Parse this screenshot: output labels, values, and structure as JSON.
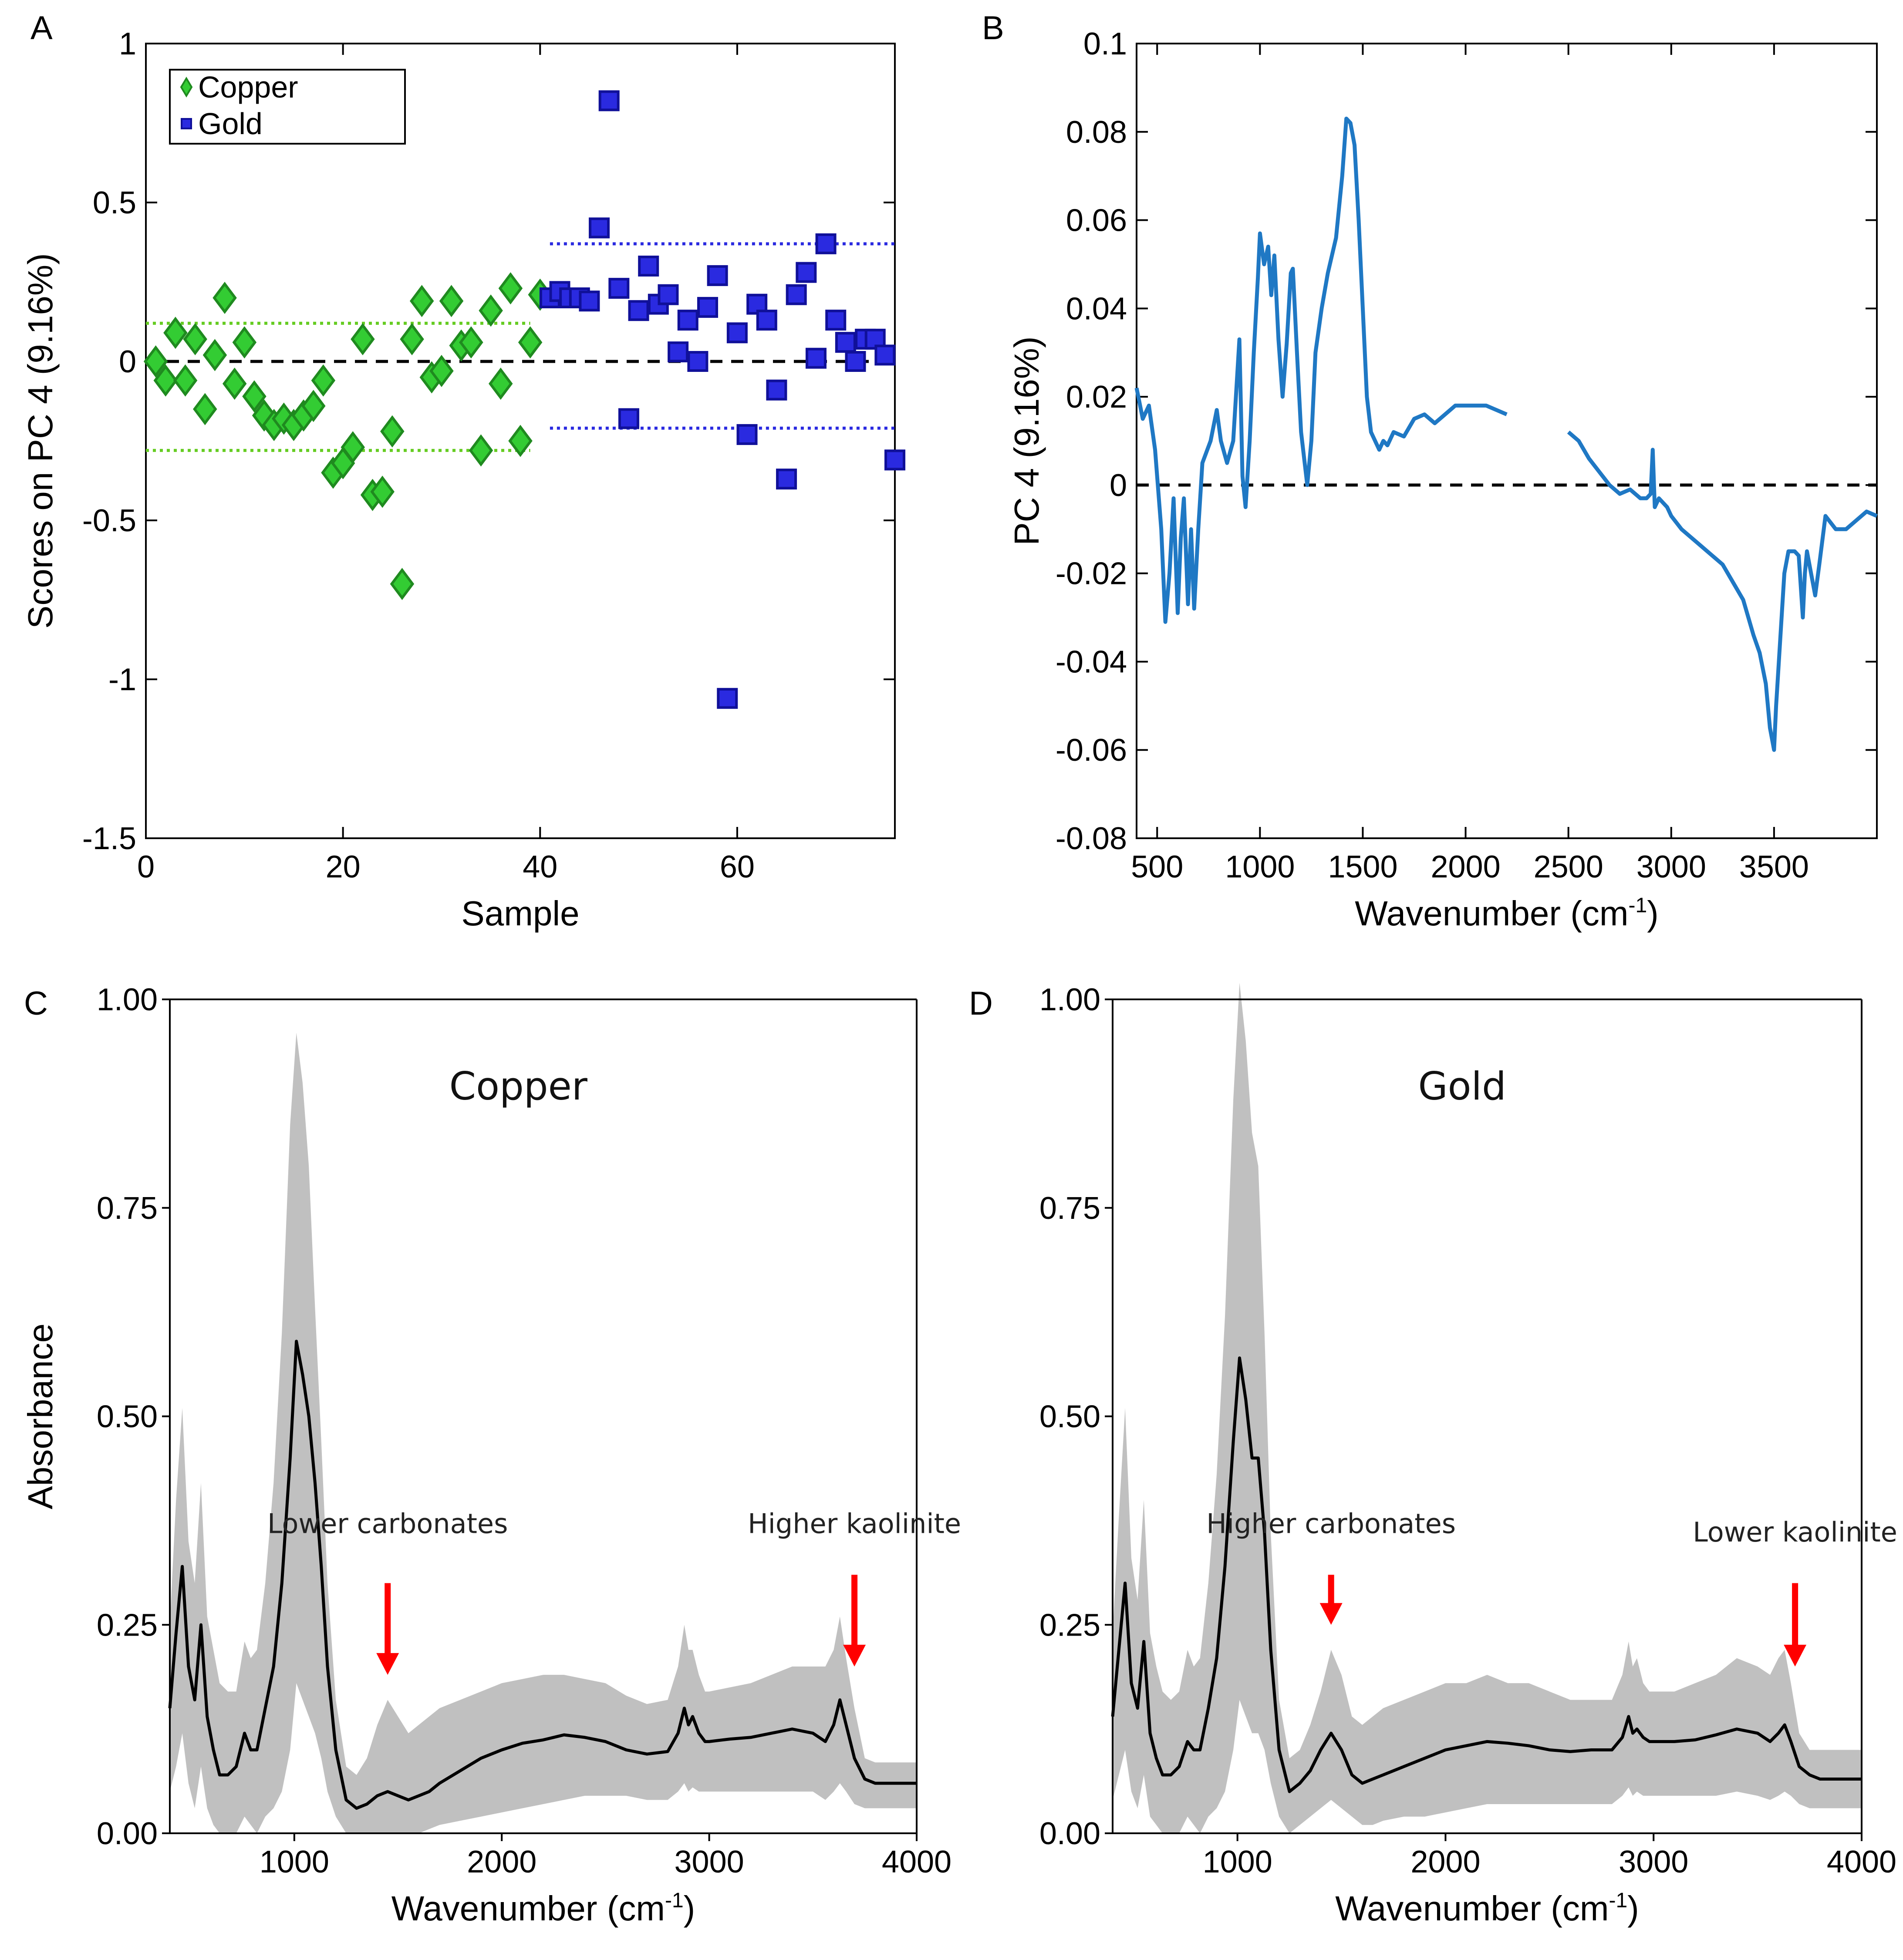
{
  "figure": {
    "panel_labels": [
      "A",
      "B",
      "C",
      "D"
    ],
    "superscript": "-1"
  },
  "chart_data": [
    {
      "panel": "A",
      "type": "scatter",
      "xlabel": "Sample",
      "ylabel": "Scores on PC 4 (9.16%)",
      "xlim": [
        0,
        76
      ],
      "ylim": [
        -1.5,
        1
      ],
      "xticks": [
        0,
        20,
        40,
        60
      ],
      "yticks": [
        1,
        0.5,
        0,
        -0.5,
        -1,
        -1.5
      ],
      "ytick_labels": [
        "1",
        "0.5",
        "0",
        "-0.5",
        "-1",
        "-1.5"
      ],
      "legend": {
        "position": "top-left",
        "entries": [
          "Copper",
          "Gold"
        ]
      },
      "zero_line": 0,
      "series": [
        {
          "name": "Copper",
          "marker": "diamond",
          "color": "#33cc33",
          "edge": "#1f8a1f",
          "x": [
            1,
            2,
            3,
            4,
            5,
            6,
            7,
            8,
            9,
            10,
            11,
            12,
            13,
            14,
            15,
            16,
            17,
            18,
            19,
            20,
            21,
            22,
            23,
            24,
            25,
            26,
            27,
            28,
            29,
            30,
            31,
            32,
            33,
            34,
            35,
            36,
            37,
            38,
            39,
            40
          ],
          "y": [
            0.0,
            -0.06,
            0.09,
            -0.06,
            0.07,
            -0.15,
            0.02,
            0.2,
            -0.07,
            0.06,
            -0.11,
            -0.17,
            -0.2,
            -0.18,
            -0.2,
            -0.17,
            -0.14,
            -0.06,
            -0.35,
            -0.32,
            -0.27,
            0.07,
            -0.42,
            -0.41,
            -0.22,
            -0.7,
            0.07,
            0.19,
            -0.05,
            -0.03,
            0.19,
            0.05,
            0.06,
            -0.28,
            0.16,
            -0.07,
            0.23,
            -0.25,
            0.06,
            0.21
          ],
          "range_lines": {
            "upper": 0.12,
            "lower": -0.28,
            "x": [
              0,
              39
            ],
            "color": "#66cc22"
          }
        },
        {
          "name": "Gold",
          "marker": "square",
          "color": "#2a2ae0",
          "edge": "#101099",
          "x": [
            41,
            42,
            43,
            44,
            45,
            46,
            47,
            48,
            49,
            50,
            51,
            52,
            53,
            54,
            55,
            56,
            57,
            58,
            59,
            60,
            61,
            62,
            63,
            64,
            65,
            66,
            67,
            68,
            69,
            70,
            71,
            72,
            73,
            74,
            75,
            76
          ],
          "y": [
            0.2,
            0.22,
            0.2,
            0.2,
            0.19,
            0.42,
            0.82,
            0.23,
            -0.18,
            0.16,
            0.3,
            0.18,
            0.21,
            0.03,
            0.13,
            0.0,
            0.17,
            0.27,
            -1.06,
            0.09,
            -0.23,
            0.18,
            0.13,
            -0.09,
            -0.37,
            0.21,
            0.28,
            0.01,
            0.37,
            0.13,
            0.06,
            0.0,
            0.07,
            0.07,
            0.02,
            -0.31
          ],
          "range_lines": {
            "upper": 0.37,
            "lower": -0.21,
            "x": [
              41,
              76
            ],
            "color": "#2a2ae0"
          }
        }
      ]
    },
    {
      "panel": "B",
      "type": "line",
      "xlabel": "Wavenumber (cm",
      "xlabel_suffix": ")",
      "ylabel": "PC 4 (9.16%)",
      "xlim": [
        400,
        4000
      ],
      "ylim": [
        -0.08,
        0.1
      ],
      "xticks": [
        500,
        1000,
        1500,
        2000,
        2500,
        3000,
        3500
      ],
      "yticks": [
        0.1,
        0.08,
        0.06,
        0.04,
        0.02,
        0,
        -0.02,
        -0.04,
        -0.06,
        -0.08
      ],
      "ytick_labels": [
        "0.1",
        "0.08",
        "0.06",
        "0.04",
        "0.02",
        "0",
        "-0.02",
        "-0.04",
        "-0.06",
        "-0.08"
      ],
      "zero_line": 0,
      "color": "#1f78c4",
      "segments": [
        {
          "x": [
            400,
            430,
            460,
            490,
            520,
            540,
            560,
            580,
            600,
            615,
            630,
            650,
            665,
            680,
            700,
            720,
            760,
            790,
            810,
            840,
            870,
            900,
            915,
            930,
            950,
            970,
            990,
            1000,
            1020,
            1040,
            1055,
            1070,
            1090,
            1110,
            1130,
            1150,
            1160,
            1180,
            1200,
            1230,
            1250,
            1270,
            1300,
            1330,
            1370,
            1400,
            1420,
            1440,
            1460,
            1480,
            1500,
            1520,
            1540,
            1560,
            1580,
            1600,
            1620,
            1650,
            1700,
            1750,
            1800,
            1850,
            1900,
            1950,
            2000,
            2050,
            2100,
            2150,
            2200
          ],
          "y": [
            0.022,
            0.015,
            0.018,
            0.008,
            -0.01,
            -0.031,
            -0.02,
            -0.003,
            -0.029,
            -0.012,
            -0.003,
            -0.027,
            -0.01,
            -0.028,
            -0.01,
            0.005,
            0.01,
            0.017,
            0.01,
            0.005,
            0.01,
            0.033,
            0.002,
            -0.005,
            0.01,
            0.03,
            0.047,
            0.057,
            0.05,
            0.054,
            0.043,
            0.052,
            0.033,
            0.02,
            0.032,
            0.048,
            0.049,
            0.03,
            0.012,
            0.0,
            0.01,
            0.03,
            0.04,
            0.048,
            0.056,
            0.07,
            0.083,
            0.082,
            0.077,
            0.06,
            0.04,
            0.02,
            0.012,
            0.01,
            0.008,
            0.01,
            0.009,
            0.012,
            0.011,
            0.015,
            0.016,
            0.014,
            0.016,
            0.018,
            0.018,
            0.018,
            0.018,
            0.017,
            0.016
          ]
        },
        {
          "x": [
            2500,
            2550,
            2600,
            2650,
            2700,
            2750,
            2800,
            2850,
            2880,
            2900,
            2910,
            2920,
            2940,
            2960,
            2980,
            3000,
            3050,
            3100,
            3150,
            3200,
            3250,
            3300,
            3350,
            3400,
            3430,
            3460,
            3480,
            3500,
            3510,
            3530,
            3550,
            3570,
            3600,
            3620,
            3640,
            3650,
            3660,
            3680,
            3700,
            3720,
            3750,
            3800,
            3850,
            3900,
            3950,
            4000
          ],
          "y": [
            0.012,
            0.01,
            0.006,
            0.003,
            0.0,
            -0.002,
            -0.001,
            -0.003,
            -0.003,
            -0.002,
            0.008,
            -0.005,
            -0.003,
            -0.004,
            -0.005,
            -0.007,
            -0.01,
            -0.012,
            -0.014,
            -0.016,
            -0.018,
            -0.022,
            -0.026,
            -0.034,
            -0.038,
            -0.045,
            -0.055,
            -0.06,
            -0.05,
            -0.035,
            -0.02,
            -0.015,
            -0.015,
            -0.016,
            -0.03,
            -0.02,
            -0.015,
            -0.02,
            -0.025,
            -0.018,
            -0.007,
            -0.01,
            -0.01,
            -0.008,
            -0.006,
            -0.007
          ]
        }
      ]
    },
    {
      "panel": "C",
      "type": "area",
      "title": "Copper",
      "xlabel": "Wavenumber (cm",
      "xlabel_suffix": ")",
      "ylabel": "Absorbance",
      "xlim": [
        400,
        4000
      ],
      "ylim": [
        0,
        1
      ],
      "xticks": [
        1000,
        2000,
        3000,
        4000
      ],
      "yticks": [
        1,
        0.75,
        0.5,
        0.25,
        0
      ],
      "ytick_labels": [
        "1.00",
        "0.75",
        "0.50",
        "0.25",
        "0.00"
      ],
      "annotations": [
        {
          "text": "Lower carbonates",
          "x": 1450,
          "y_text": 0.36,
          "arrow_from": 0.3,
          "arrow_to": 0.19
        },
        {
          "text": "Higher kaolinite",
          "x": 3700,
          "y_text": 0.36,
          "arrow_from": 0.31,
          "arrow_to": 0.2
        }
      ],
      "x": [
        400,
        430,
        460,
        490,
        520,
        550,
        580,
        610,
        640,
        680,
        720,
        760,
        790,
        820,
        860,
        900,
        940,
        980,
        1010,
        1040,
        1070,
        1100,
        1130,
        1160,
        1200,
        1250,
        1300,
        1350,
        1400,
        1450,
        1500,
        1550,
        1600,
        1650,
        1700,
        1800,
        1900,
        2000,
        2100,
        2200,
        2300,
        2400,
        2500,
        2600,
        2700,
        2800,
        2850,
        2880,
        2900,
        2920,
        2950,
        2980,
        3000,
        3100,
        3200,
        3300,
        3400,
        3500,
        3560,
        3600,
        3630,
        3660,
        3700,
        3750,
        3800,
        3900,
        4000
      ],
      "mean": [
        0.15,
        0.24,
        0.32,
        0.2,
        0.16,
        0.25,
        0.14,
        0.1,
        0.07,
        0.07,
        0.08,
        0.12,
        0.1,
        0.1,
        0.15,
        0.2,
        0.3,
        0.45,
        0.59,
        0.55,
        0.5,
        0.42,
        0.32,
        0.2,
        0.1,
        0.04,
        0.03,
        0.035,
        0.045,
        0.05,
        0.045,
        0.04,
        0.045,
        0.05,
        0.06,
        0.075,
        0.09,
        0.1,
        0.108,
        0.112,
        0.118,
        0.115,
        0.11,
        0.1,
        0.095,
        0.098,
        0.12,
        0.15,
        0.13,
        0.14,
        0.12,
        0.11,
        0.11,
        0.113,
        0.115,
        0.12,
        0.125,
        0.12,
        0.11,
        0.13,
        0.16,
        0.13,
        0.09,
        0.065,
        0.06,
        0.06,
        0.06
      ],
      "upper": [
        0.25,
        0.4,
        0.51,
        0.35,
        0.3,
        0.42,
        0.26,
        0.22,
        0.18,
        0.17,
        0.17,
        0.23,
        0.21,
        0.22,
        0.3,
        0.42,
        0.6,
        0.85,
        0.96,
        0.9,
        0.8,
        0.63,
        0.47,
        0.3,
        0.16,
        0.08,
        0.07,
        0.09,
        0.13,
        0.16,
        0.14,
        0.12,
        0.13,
        0.14,
        0.15,
        0.16,
        0.17,
        0.18,
        0.185,
        0.19,
        0.19,
        0.185,
        0.18,
        0.165,
        0.155,
        0.16,
        0.2,
        0.25,
        0.22,
        0.22,
        0.19,
        0.17,
        0.17,
        0.175,
        0.18,
        0.19,
        0.2,
        0.2,
        0.2,
        0.22,
        0.26,
        0.21,
        0.15,
        0.09,
        0.085,
        0.085,
        0.085
      ],
      "lower": [
        0.05,
        0.08,
        0.12,
        0.06,
        0.03,
        0.08,
        0.03,
        0.01,
        0.0,
        0.0,
        0.0,
        0.02,
        0.01,
        0.0,
        0.02,
        0.03,
        0.05,
        0.1,
        0.18,
        0.16,
        0.14,
        0.12,
        0.09,
        0.05,
        0.02,
        0.0,
        0.0,
        0.0,
        0.0,
        0.0,
        0.0,
        0.0,
        0.0,
        0.005,
        0.01,
        0.015,
        0.02,
        0.025,
        0.03,
        0.035,
        0.04,
        0.045,
        0.045,
        0.045,
        0.04,
        0.04,
        0.05,
        0.06,
        0.05,
        0.055,
        0.05,
        0.05,
        0.05,
        0.05,
        0.05,
        0.05,
        0.05,
        0.05,
        0.04,
        0.05,
        0.06,
        0.05,
        0.035,
        0.03,
        0.03,
        0.03,
        0.03
      ]
    },
    {
      "panel": "D",
      "type": "area",
      "title": "Gold",
      "xlabel": "Wavenumber (cm",
      "xlabel_suffix": ")",
      "ylabel": "",
      "xlim": [
        400,
        4000
      ],
      "ylim": [
        0,
        1
      ],
      "xticks": [
        1000,
        2000,
        3000,
        4000
      ],
      "yticks": [
        1,
        0.75,
        0.5,
        0.25,
        0
      ],
      "ytick_labels": [
        "1.00",
        "0.75",
        "0.50",
        "0.25",
        "0.00"
      ],
      "annotations": [
        {
          "text": "Higher carbonates",
          "x": 1450,
          "y_text": 0.36,
          "arrow_from": 0.31,
          "arrow_to": 0.25
        },
        {
          "text": "Lower kaolinite",
          "x": 3680,
          "y_text": 0.35,
          "arrow_from": 0.3,
          "arrow_to": 0.2
        }
      ],
      "x": [
        400,
        430,
        460,
        490,
        520,
        550,
        580,
        610,
        640,
        680,
        720,
        760,
        790,
        820,
        860,
        900,
        940,
        980,
        1010,
        1040,
        1070,
        1100,
        1130,
        1160,
        1200,
        1250,
        1300,
        1350,
        1400,
        1450,
        1500,
        1550,
        1600,
        1650,
        1700,
        1800,
        1900,
        2000,
        2100,
        2200,
        2300,
        2400,
        2500,
        2600,
        2700,
        2800,
        2850,
        2880,
        2900,
        2920,
        2950,
        2980,
        3000,
        3100,
        3200,
        3300,
        3400,
        3500,
        3560,
        3600,
        3630,
        3660,
        3700,
        3750,
        3800,
        3900,
        4000
      ],
      "mean": [
        0.14,
        0.22,
        0.3,
        0.18,
        0.15,
        0.23,
        0.12,
        0.09,
        0.07,
        0.07,
        0.08,
        0.11,
        0.1,
        0.1,
        0.15,
        0.21,
        0.32,
        0.47,
        0.57,
        0.52,
        0.45,
        0.45,
        0.36,
        0.22,
        0.1,
        0.05,
        0.06,
        0.075,
        0.1,
        0.12,
        0.1,
        0.07,
        0.06,
        0.065,
        0.07,
        0.08,
        0.09,
        0.1,
        0.105,
        0.11,
        0.108,
        0.105,
        0.1,
        0.098,
        0.1,
        0.1,
        0.115,
        0.14,
        0.12,
        0.125,
        0.115,
        0.11,
        0.11,
        0.11,
        0.112,
        0.118,
        0.125,
        0.12,
        0.11,
        0.12,
        0.13,
        0.11,
        0.08,
        0.07,
        0.065,
        0.065,
        0.065
      ],
      "upper": [
        0.24,
        0.38,
        0.51,
        0.33,
        0.28,
        0.4,
        0.24,
        0.2,
        0.17,
        0.16,
        0.17,
        0.22,
        0.2,
        0.21,
        0.3,
        0.43,
        0.62,
        0.88,
        1.02,
        0.95,
        0.84,
        0.8,
        0.6,
        0.36,
        0.16,
        0.09,
        0.1,
        0.13,
        0.17,
        0.22,
        0.19,
        0.14,
        0.13,
        0.14,
        0.15,
        0.16,
        0.17,
        0.18,
        0.18,
        0.19,
        0.18,
        0.18,
        0.17,
        0.16,
        0.16,
        0.16,
        0.19,
        0.23,
        0.2,
        0.21,
        0.18,
        0.17,
        0.17,
        0.17,
        0.18,
        0.19,
        0.21,
        0.2,
        0.19,
        0.21,
        0.22,
        0.18,
        0.12,
        0.1,
        0.1,
        0.1,
        0.1
      ],
      "lower": [
        0.04,
        0.07,
        0.1,
        0.05,
        0.03,
        0.07,
        0.02,
        0.01,
        0.0,
        0.0,
        0.0,
        0.02,
        0.01,
        0.0,
        0.02,
        0.03,
        0.05,
        0.1,
        0.16,
        0.14,
        0.12,
        0.12,
        0.1,
        0.06,
        0.02,
        0.0,
        0.01,
        0.02,
        0.03,
        0.04,
        0.03,
        0.02,
        0.01,
        0.01,
        0.015,
        0.02,
        0.02,
        0.025,
        0.03,
        0.035,
        0.035,
        0.035,
        0.035,
        0.035,
        0.035,
        0.035,
        0.045,
        0.055,
        0.045,
        0.05,
        0.045,
        0.045,
        0.045,
        0.045,
        0.045,
        0.045,
        0.05,
        0.045,
        0.04,
        0.045,
        0.05,
        0.045,
        0.035,
        0.03,
        0.03,
        0.03,
        0.03
      ]
    }
  ]
}
